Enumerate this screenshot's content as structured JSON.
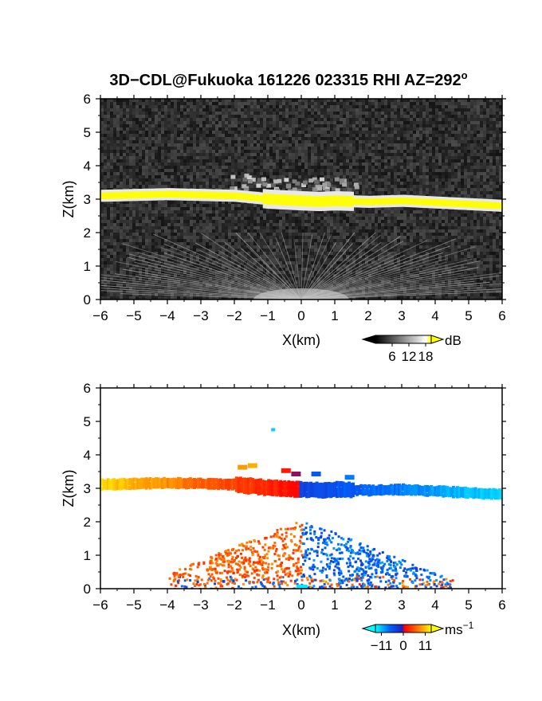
{
  "figure": {
    "title_main": "3D−CDL@Fukuoka 161226 023315 RHI AZ=292",
    "title_superscript": "o"
  },
  "chart_data": [
    {
      "type": "heatmap",
      "quantity": "reflectivity",
      "xlabel": "X(km)",
      "ylabel": "Z(km)",
      "xlim": [
        -6,
        6
      ],
      "ylim": [
        0,
        6
      ],
      "xticks": [
        -6,
        -5,
        -4,
        -3,
        -2,
        -1,
        0,
        1,
        2,
        3,
        4,
        5,
        6
      ],
      "xtick_labels": [
        "−6",
        "−5",
        "−4",
        "−3",
        "−2",
        "−1",
        "0",
        "1",
        "2",
        "3",
        "4",
        "5",
        "6"
      ],
      "yticks": [
        0,
        1,
        2,
        3,
        4,
        5,
        6
      ],
      "ytick_labels": [
        "0",
        "1",
        "2",
        "3",
        "4",
        "5",
        "6"
      ],
      "colorbar": {
        "unit": "dB",
        "ticks": [
          6,
          12,
          18
        ],
        "tick_labels": [
          "6",
          "12",
          "18"
        ],
        "range": [
          0,
          20
        ],
        "colors": [
          "#000000",
          "#ffffff",
          "#ffff00"
        ]
      },
      "features": {
        "cloud_layer_z": [
          [
            -6,
            3.1
          ],
          [
            -4,
            3.15
          ],
          [
            -2,
            3.1
          ],
          [
            -1,
            3.0
          ],
          [
            0,
            2.95
          ],
          [
            0.5,
            2.93
          ],
          [
            1,
            2.95
          ],
          [
            2,
            2.92
          ],
          [
            3,
            2.95
          ],
          [
            4,
            2.9
          ],
          [
            5,
            2.85
          ],
          [
            6,
            2.8
          ]
        ],
        "upper_patch_x": [
          -2.2,
          1.6
        ],
        "upper_patch_z": [
          3.3,
          3.9
        ],
        "fan_base_z": 0.0,
        "fan_top_z": 2.0,
        "fan_x_range": [
          -4.5,
          4.5
        ]
      }
    },
    {
      "type": "heatmap",
      "quantity": "doppler_velocity",
      "xlabel": "X(km)",
      "ylabel": "Z(km)",
      "xlim": [
        -6,
        6
      ],
      "ylim": [
        0,
        6
      ],
      "xticks": [
        -6,
        -5,
        -4,
        -3,
        -2,
        -1,
        0,
        1,
        2,
        3,
        4,
        5,
        6
      ],
      "xtick_labels": [
        "−6",
        "−5",
        "−4",
        "−3",
        "−2",
        "−1",
        "0",
        "1",
        "2",
        "3",
        "4",
        "5",
        "6"
      ],
      "yticks": [
        0,
        1,
        2,
        3,
        4,
        5,
        6
      ],
      "ytick_labels": [
        "0",
        "1",
        "2",
        "3",
        "4",
        "5",
        "6"
      ],
      "colorbar": {
        "unit": "ms",
        "unit_superscript": "−1",
        "ticks": [
          -11,
          0,
          11
        ],
        "tick_labels": [
          "−11",
          "0",
          "11"
        ],
        "range": [
          -14,
          14
        ],
        "colors": [
          "#00ffff",
          "#0050ff",
          "#2020c0",
          "#ff0000",
          "#ff6a00",
          "#ffff00"
        ]
      },
      "features": {
        "cloud_layer_z": [
          [
            -6,
            3.1
          ],
          [
            -4,
            3.15
          ],
          [
            -2,
            3.1
          ],
          [
            -1,
            3.0
          ],
          [
            0,
            2.95
          ],
          [
            0.5,
            2.93
          ],
          [
            1,
            2.95
          ],
          [
            2,
            2.92
          ],
          [
            3,
            2.95
          ],
          [
            4,
            2.9
          ],
          [
            5,
            2.85
          ],
          [
            6,
            2.8
          ]
        ],
        "isolated_point": [
          -0.9,
          4.8
        ],
        "low_echo_x_range": [
          -4.0,
          4.5
        ],
        "low_echo_top_z": 1.9
      }
    }
  ]
}
